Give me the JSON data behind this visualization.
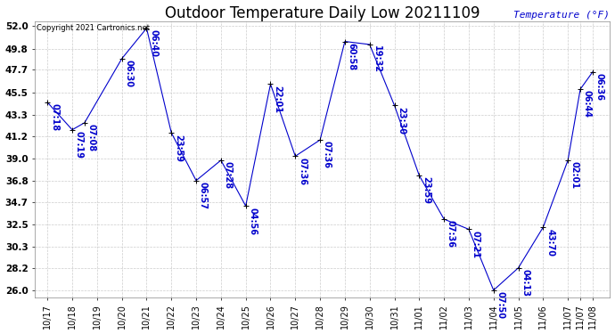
{
  "title": "Outdoor Temperature Daily Low 20211109",
  "ylabel": "Temperature (°F)",
  "copyright": "Copyright 2021 Cartronics.net",
  "line_color": "#0000cc",
  "background_color": "#ffffff",
  "grid_color": "#cccccc",
  "text_color_blue": "#0000cc",
  "text_color_black": "#000000",
  "points": [
    {
      "x": 0,
      "temp": 44.5,
      "label": "07:18"
    },
    {
      "x": 1,
      "temp": 41.8,
      "label": "07:19"
    },
    {
      "x": 1.5,
      "temp": 42.5,
      "label": "07:08"
    },
    {
      "x": 3,
      "temp": 48.8,
      "label": "06:30"
    },
    {
      "x": 4,
      "temp": 51.8,
      "label": "06:40"
    },
    {
      "x": 5,
      "temp": 41.5,
      "label": "23:59"
    },
    {
      "x": 6,
      "temp": 36.8,
      "label": "06:57"
    },
    {
      "x": 7,
      "temp": 38.8,
      "label": "07:28"
    },
    {
      "x": 8,
      "temp": 34.3,
      "label": "04:56"
    },
    {
      "x": 9,
      "temp": 46.3,
      "label": "22:01"
    },
    {
      "x": 10,
      "temp": 39.2,
      "label": "07:36"
    },
    {
      "x": 11,
      "temp": 40.8,
      "label": "07:36"
    },
    {
      "x": 12,
      "temp": 50.5,
      "label": "60:58"
    },
    {
      "x": 13,
      "temp": 50.2,
      "label": "19:32"
    },
    {
      "x": 14,
      "temp": 44.2,
      "label": "23:30"
    },
    {
      "x": 15,
      "temp": 37.3,
      "label": "23:59"
    },
    {
      "x": 16,
      "temp": 33.0,
      "label": "07:36"
    },
    {
      "x": 17,
      "temp": 32.0,
      "label": "07:21"
    },
    {
      "x": 18,
      "temp": 26.0,
      "label": "07:50"
    },
    {
      "x": 19,
      "temp": 28.2,
      "label": "04:13"
    },
    {
      "x": 20,
      "temp": 32.2,
      "label": "43:70"
    },
    {
      "x": 21,
      "temp": 38.8,
      "label": "02:01"
    },
    {
      "x": 21.5,
      "temp": 45.8,
      "label": "06:44"
    },
    {
      "x": 22,
      "temp": 47.5,
      "label": "06:36"
    }
  ],
  "xtick_positions": [
    0,
    1,
    2,
    3,
    4,
    5,
    6,
    7,
    8,
    9,
    10,
    11,
    12,
    13,
    14,
    15,
    16,
    17,
    18,
    19,
    20,
    21,
    21.5,
    22
  ],
  "xtick_labels": [
    "10/17",
    "10/18",
    "10/19",
    "10/20",
    "10/21",
    "10/22",
    "10/23",
    "10/24",
    "10/25",
    "10/26",
    "10/27",
    "10/28",
    "10/29",
    "10/30",
    "10/31",
    "11/01",
    "11/02",
    "11/03",
    "11/04",
    "11/05",
    "11/06",
    "11/07",
    "11/07",
    "11/08"
  ],
  "yticks": [
    26.0,
    28.2,
    30.3,
    32.5,
    34.7,
    36.8,
    39.0,
    41.2,
    43.3,
    45.5,
    47.7,
    49.8,
    52.0
  ],
  "xlim": [
    -0.5,
    22.7
  ],
  "ylim": [
    25.3,
    52.5
  ],
  "title_fontsize": 12,
  "annot_fontsize": 7,
  "copyright_fontsize": 6,
  "tick_fontsize": 7,
  "ytick_fontsize": 7.5
}
